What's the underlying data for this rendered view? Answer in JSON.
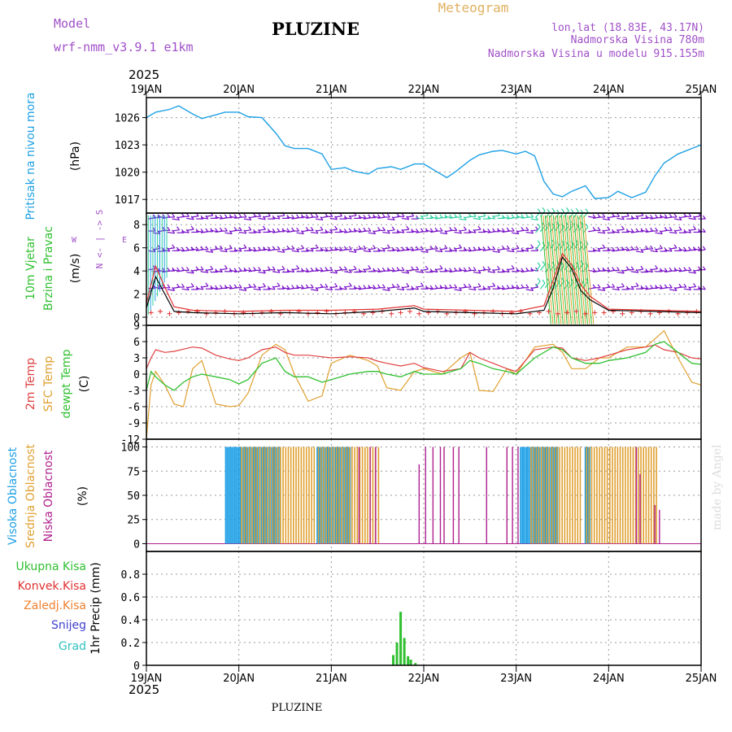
{
  "header": {
    "model_label": "Model",
    "model_name": "wrf-nmm_v3.9.1 e1km",
    "station": "PLUZINE",
    "meteogram_label": "Meteogram",
    "location": "lon,lat (18.83E, 43.17N)",
    "altitude": "Nadmorska Visina 780m",
    "model_altitude": "Nadmorska Visina u modelu 915.155m",
    "year_top": "2025",
    "year_bottom": "2025",
    "footer_station": "PLUZINE",
    "watermark": "made by Angel",
    "dates": [
      "19JAN",
      "20JAN",
      "21JAN",
      "22JAN",
      "23JAN",
      "24JAN",
      "25JAN"
    ]
  },
  "colors": {
    "pressure": "#1ea0e6",
    "purple": "#a050c8",
    "wind_speed": "#000000",
    "gust": "#e03030",
    "barb_main": "#7a10c8",
    "barb_bright": "#30d0a0",
    "temp2m": "#e04040",
    "sfc": "#e0a030",
    "dewpt": "#30c030",
    "high_cloud": "#1ea0e6",
    "mid_cloud": "#e0a030",
    "low_cloud": "#b02090",
    "total_precip": "#30c030",
    "conv_precip": "#e03030",
    "frozen_precip": "#f08030",
    "snow": "#4040d0",
    "grad": "#30c0c0"
  },
  "chart_data": [
    {
      "type": "line",
      "panel": "pressure",
      "ylabel": "Pritisak na nivou mora",
      "unit": "(hPa)",
      "ylim": [
        1015.5,
        1028.2
      ],
      "yticks": [
        1017,
        1020,
        1023,
        1026
      ],
      "x_unit": "days since 19JAN 00",
      "xlim": [
        0,
        6
      ],
      "x": [
        0,
        0.1,
        0.25,
        0.35,
        0.5,
        0.6,
        0.75,
        0.85,
        1.0,
        1.1,
        1.25,
        1.4,
        1.5,
        1.6,
        1.75,
        1.9,
        2.0,
        2.15,
        2.25,
        2.4,
        2.5,
        2.65,
        2.75,
        2.9,
        3.0,
        3.15,
        3.25,
        3.35,
        3.5,
        3.6,
        3.75,
        3.85,
        4.0,
        4.1,
        4.2,
        4.3,
        4.4,
        4.5,
        4.6,
        4.75,
        4.85,
        5.0,
        5.1,
        5.25,
        5.4,
        5.5,
        5.6,
        5.75,
        5.9,
        6.0
      ],
      "series": [
        {
          "name": "Pritisak",
          "values": [
            1026.0,
            1026.6,
            1026.9,
            1027.3,
            1026.4,
            1025.9,
            1026.3,
            1026.6,
            1026.6,
            1026.1,
            1026.0,
            1024.3,
            1022.9,
            1022.6,
            1022.6,
            1022.0,
            1020.3,
            1020.5,
            1020.1,
            1019.8,
            1020.4,
            1020.6,
            1020.3,
            1020.9,
            1020.9,
            1020.0,
            1019.4,
            1020.1,
            1021.3,
            1021.9,
            1022.3,
            1022.4,
            1022.0,
            1022.3,
            1021.8,
            1019.0,
            1017.6,
            1017.3,
            1017.9,
            1018.5,
            1017.1,
            1017.2,
            1017.9,
            1017.2,
            1017.8,
            1019.6,
            1021.0,
            1022.0,
            1022.6,
            1023.0
          ]
        }
      ]
    },
    {
      "type": "line",
      "panel": "wind",
      "ylabel": "10m Vjetar",
      "ylabel2": "Brzina i Pravac",
      "unit": "(m/s)",
      "direction_legend": "N <- | -> S",
      "direction_w": "W",
      "direction_e": "E",
      "ylim": [
        -0.7,
        9.0
      ],
      "yticks": [
        0,
        2,
        4,
        6,
        8
      ],
      "xlim": [
        0,
        6
      ],
      "x": [
        0,
        0.1,
        0.2,
        0.3,
        0.5,
        1.0,
        1.5,
        2.0,
        2.5,
        2.9,
        3.0,
        3.5,
        4.0,
        4.3,
        4.4,
        4.5,
        4.6,
        4.7,
        4.8,
        5.0,
        5.5,
        6.0
      ],
      "series": [
        {
          "name": "Brzina vjetra",
          "values": [
            0.8,
            3.5,
            2.0,
            0.5,
            0.4,
            0.3,
            0.4,
            0.3,
            0.5,
            0.8,
            0.5,
            0.4,
            0.3,
            0.6,
            2.5,
            5.2,
            4.2,
            2.3,
            1.5,
            0.6,
            0.5,
            0.4
          ]
        },
        {
          "name": "Udari vjetra",
          "values": [
            1.2,
            4.4,
            2.6,
            0.9,
            0.6,
            0.5,
            0.6,
            0.6,
            0.7,
            1.0,
            0.7,
            0.6,
            0.5,
            1.0,
            3.2,
            5.5,
            4.5,
            2.8,
            1.8,
            0.7,
            0.6,
            0.5
          ]
        }
      ],
      "barb_rows": [
        8.6,
        7.4,
        5.8,
        4.0,
        2.5
      ]
    },
    {
      "type": "line",
      "panel": "temperature",
      "ylabel": "2m Temp",
      "ylabel2": "SFC Temp",
      "ylabel3": "dewpt Temp",
      "unit": "(C)",
      "ylim": [
        -12,
        9
      ],
      "yticks": [
        -12,
        -9,
        -6,
        -3,
        0,
        3,
        6,
        9
      ],
      "xlim": [
        0,
        6
      ],
      "x": [
        0,
        0.05,
        0.1,
        0.2,
        0.3,
        0.4,
        0.5,
        0.6,
        0.75,
        0.9,
        1.0,
        1.1,
        1.25,
        1.4,
        1.5,
        1.6,
        1.75,
        1.9,
        2.0,
        2.2,
        2.4,
        2.5,
        2.6,
        2.75,
        2.9,
        3.0,
        3.2,
        3.4,
        3.5,
        3.6,
        3.75,
        3.9,
        4.0,
        4.2,
        4.4,
        4.5,
        4.6,
        4.75,
        4.9,
        5.0,
        5.2,
        5.4,
        5.5,
        5.6,
        5.75,
        5.9,
        6.0
      ],
      "series": [
        {
          "name": "2m Temp",
          "values": [
            1.0,
            3.0,
            4.5,
            4.0,
            4.2,
            4.6,
            5.0,
            4.8,
            3.5,
            2.8,
            2.5,
            3.0,
            4.5,
            5.0,
            4.0,
            3.5,
            3.5,
            3.2,
            3.0,
            3.2,
            3.0,
            2.4,
            2.0,
            1.5,
            2.0,
            1.2,
            0.5,
            1.0,
            4.0,
            3.0,
            2.0,
            1.0,
            0.5,
            4.5,
            5.0,
            4.8,
            3.0,
            2.5,
            3.0,
            3.5,
            4.5,
            5.0,
            5.4,
            4.5,
            4.0,
            3.0,
            2.8
          ]
        },
        {
          "name": "SFC Temp",
          "values": [
            -12.0,
            -2.0,
            0.5,
            -2.0,
            -5.5,
            -6.0,
            1.0,
            2.5,
            -5.5,
            -6.0,
            -5.8,
            -3.5,
            3.5,
            5.5,
            4.5,
            0.0,
            -5.0,
            -4.0,
            2.0,
            3.5,
            2.5,
            1.5,
            -2.5,
            -3.0,
            0.5,
            1.0,
            0.0,
            3.0,
            4.0,
            -3.0,
            -3.2,
            1.0,
            0.0,
            5.0,
            5.5,
            4.0,
            1.0,
            1.0,
            3.0,
            3.0,
            5.0,
            5.0,
            6.5,
            8.0,
            3.0,
            -1.5,
            -2.0
          ]
        },
        {
          "name": "dewpt Temp",
          "values": [
            -3.0,
            0.5,
            -0.5,
            -2.0,
            -3.0,
            -1.5,
            -0.5,
            0.0,
            -0.5,
            -1.0,
            -1.8,
            -1.0,
            2.0,
            3.0,
            0.5,
            -0.5,
            -0.5,
            -1.5,
            -1.0,
            0.0,
            0.5,
            0.5,
            0.0,
            -0.5,
            0.5,
            0.0,
            0.0,
            1.0,
            2.5,
            2.0,
            1.0,
            0.5,
            0.0,
            3.0,
            5.0,
            4.5,
            3.0,
            2.0,
            2.0,
            2.5,
            3.0,
            4.0,
            5.5,
            6.0,
            4.0,
            2.0,
            1.8
          ]
        }
      ]
    },
    {
      "type": "bar",
      "panel": "cloud",
      "ylabel": "Visoka Oblacnost",
      "ylabel2": "Srednja Oblacnost",
      "ylabel3": "Niska Oblacnost",
      "unit": "(%)",
      "ylim": [
        -8,
        108
      ],
      "yticks": [
        0,
        25,
        50,
        75,
        100
      ],
      "xlim": [
        0,
        6
      ],
      "series": [
        {
          "name": "Visoka Oblacnost",
          "ranges": [
            [
              0.86,
              1.02,
              100
            ],
            [
              1.05,
              1.45,
              100
            ],
            [
              1.85,
              2.22,
              100
            ],
            [
              4.05,
              4.45,
              100
            ],
            [
              4.75,
              4.8,
              100
            ]
          ]
        },
        {
          "name": "Srednja Oblacnost",
          "ranges": [
            [
              1.02,
              1.83,
              100
            ],
            [
              1.85,
              2.5,
              100
            ],
            [
              2.5,
              2.52,
              100
            ],
            [
              4.15,
              4.7,
              100
            ],
            [
              4.75,
              5.52,
              100
            ]
          ]
        },
        {
          "name": "Niska Oblacnost",
          "x": [
            2.3,
            2.42,
            2.48,
            2.95,
            3.02,
            3.1,
            3.18,
            3.22,
            3.32,
            3.38,
            3.68,
            3.9,
            3.96,
            4.02,
            5.3,
            5.34,
            5.5,
            5.55
          ],
          "values": [
            100,
            100,
            100,
            82,
            100,
            100,
            100,
            100,
            100,
            100,
            100,
            100,
            100,
            100,
            100,
            72,
            40,
            35
          ]
        }
      ]
    },
    {
      "type": "bar",
      "panel": "precipitation",
      "ylabel": "1hr Precip",
      "unit": "(mm)",
      "legend": [
        "Ukupna Kisa",
        "Konvek.Kisa",
        "Zaledj.Kisa",
        "Snijeg",
        "Grad"
      ],
      "ylim": [
        0,
        1.0
      ],
      "yticks": [
        0,
        0.2,
        0.4,
        0.6,
        0.8
      ],
      "xlim": [
        0,
        6
      ],
      "x": [
        2.67,
        2.71,
        2.75,
        2.79,
        2.83,
        2.86,
        2.91
      ],
      "values": [
        0.09,
        0.2,
        0.47,
        0.24,
        0.08,
        0.05,
        0.02
      ]
    }
  ]
}
